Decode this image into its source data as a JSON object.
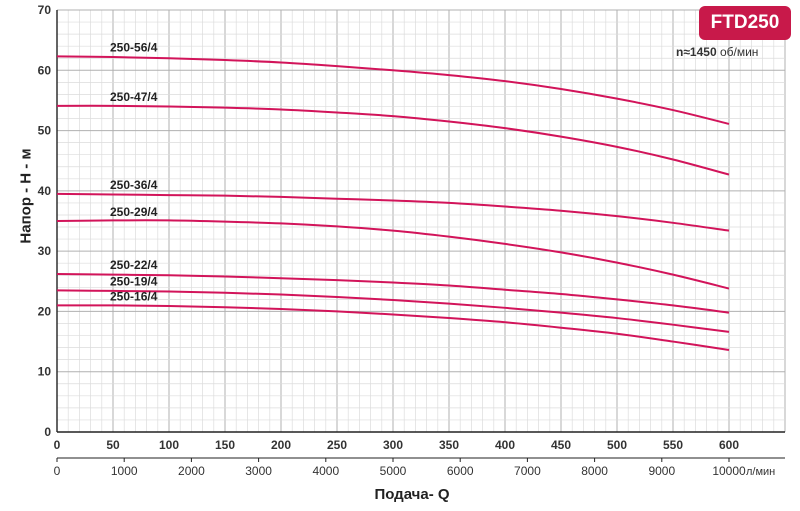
{
  "chart_data": {
    "type": "line",
    "badge": "FTD250",
    "speed_label": "n≈1450",
    "speed_unit": "об/мин",
    "ylabel": "Напор - H - м",
    "xlabel": "Подача- Q",
    "x2_unit": "л/мин",
    "xlim": [
      0,
      650
    ],
    "ylim": [
      0,
      70
    ],
    "x_ticks": [
      0,
      50,
      100,
      150,
      200,
      250,
      300,
      350,
      400,
      450,
      500,
      550,
      600
    ],
    "x2_ticks": [
      0,
      1000,
      2000,
      3000,
      4000,
      5000,
      6000,
      7000,
      8000,
      9000,
      10000
    ],
    "y_ticks": [
      0,
      10,
      20,
      30,
      40,
      50,
      60,
      70
    ],
    "grid": true,
    "colors": {
      "curve": "#d2145a",
      "grid": "#c8c8c8",
      "badge": "#c8194a"
    },
    "series": [
      {
        "name": "250-56/4",
        "x": [
          0,
          50,
          100,
          150,
          200,
          250,
          300,
          350,
          400,
          450,
          500,
          550,
          600
        ],
        "y": [
          62.3,
          62.2,
          62.0,
          61.7,
          61.3,
          60.7,
          60.0,
          59.2,
          58.2,
          56.9,
          55.3,
          53.4,
          51.1
        ]
      },
      {
        "name": "250-47/4",
        "x": [
          0,
          50,
          100,
          150,
          200,
          250,
          300,
          350,
          400,
          450,
          500,
          550,
          600
        ],
        "y": [
          54.1,
          54.1,
          54.0,
          53.8,
          53.5,
          53.0,
          52.4,
          51.5,
          50.4,
          49.0,
          47.3,
          45.2,
          42.7
        ]
      },
      {
        "name": "250-36/4",
        "x": [
          0,
          50,
          100,
          150,
          200,
          250,
          300,
          350,
          400,
          450,
          500,
          550,
          600
        ],
        "y": [
          39.5,
          39.4,
          39.3,
          39.2,
          39.0,
          38.7,
          38.4,
          38.0,
          37.4,
          36.7,
          35.8,
          34.7,
          33.4
        ]
      },
      {
        "name": "250-29/4",
        "x": [
          0,
          50,
          100,
          150,
          200,
          250,
          300,
          350,
          400,
          450,
          500,
          550,
          600
        ],
        "y": [
          35.0,
          35.1,
          35.1,
          34.9,
          34.6,
          34.1,
          33.4,
          32.4,
          31.2,
          29.8,
          28.1,
          26.1,
          23.8
        ]
      },
      {
        "name": "250-22/4",
        "x": [
          0,
          50,
          100,
          150,
          200,
          250,
          300,
          350,
          400,
          450,
          500,
          550,
          600
        ],
        "y": [
          26.2,
          26.1,
          26.0,
          25.8,
          25.5,
          25.2,
          24.8,
          24.3,
          23.6,
          22.9,
          22.0,
          21.0,
          19.8
        ]
      },
      {
        "name": "250-19/4",
        "x": [
          0,
          50,
          100,
          150,
          200,
          250,
          300,
          350,
          400,
          450,
          500,
          550,
          600
        ],
        "y": [
          23.5,
          23.4,
          23.3,
          23.1,
          22.8,
          22.4,
          21.9,
          21.3,
          20.6,
          19.8,
          18.9,
          17.8,
          16.6
        ]
      },
      {
        "name": "250-16/4",
        "x": [
          0,
          50,
          100,
          150,
          200,
          250,
          300,
          350,
          400,
          450,
          500,
          550,
          600
        ],
        "y": [
          21.0,
          21.0,
          20.9,
          20.7,
          20.4,
          20.0,
          19.5,
          18.9,
          18.2,
          17.3,
          16.3,
          15.0,
          13.6
        ]
      }
    ]
  }
}
